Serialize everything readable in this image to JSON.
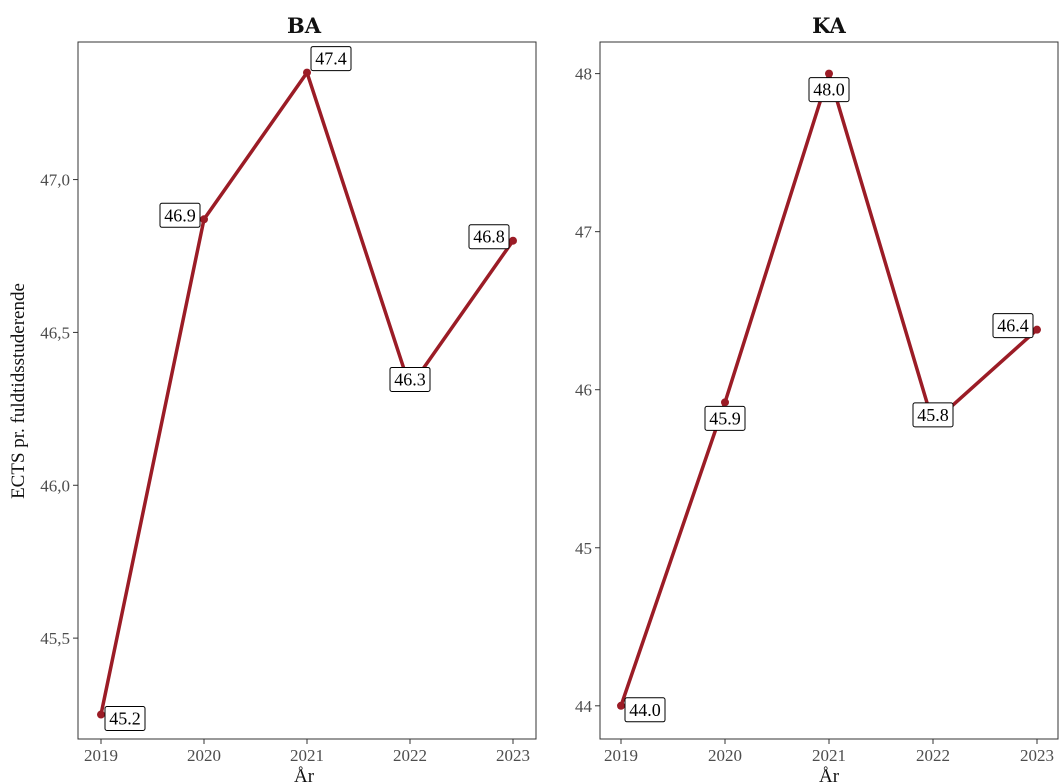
{
  "chart_data": [
    {
      "type": "line",
      "title": "BA",
      "xlabel": "År",
      "ylabel": "ECTS pr. fuldtidsstuderende",
      "x": [
        2019,
        2020,
        2021,
        2022,
        2023
      ],
      "x_tick_labels": [
        "2019",
        "2020",
        "2021",
        "2022",
        "2023"
      ],
      "values": [
        45.25,
        46.87,
        47.35,
        46.32,
        46.8
      ],
      "data_labels": [
        "45.2",
        "46.9",
        "47.4",
        "46.3",
        "46.8"
      ],
      "ylim": [
        45.17,
        47.45
      ],
      "yticks": [
        45.5,
        46.0,
        46.5,
        47.0
      ],
      "y_tick_labels": [
        "45,5",
        "46,0",
        "46,5",
        "47,0"
      ],
      "line_color": "#9b1c26",
      "grid": false
    },
    {
      "type": "line",
      "title": "KA",
      "xlabel": "År",
      "ylabel": "",
      "x": [
        2019,
        2020,
        2021,
        2022,
        2023
      ],
      "x_tick_labels": [
        "2019",
        "2020",
        "2021",
        "2022",
        "2023"
      ],
      "values": [
        44.0,
        45.92,
        48.0,
        45.79,
        46.38
      ],
      "data_labels": [
        "44.0",
        "45.9",
        "48.0",
        "45.8",
        "46.4"
      ],
      "ylim": [
        43.79,
        48.2
      ],
      "yticks": [
        44,
        45,
        46,
        47,
        48
      ],
      "y_tick_labels": [
        "44",
        "45",
        "46",
        "47",
        "48"
      ],
      "line_color": "#9b1c26",
      "grid": false
    }
  ]
}
